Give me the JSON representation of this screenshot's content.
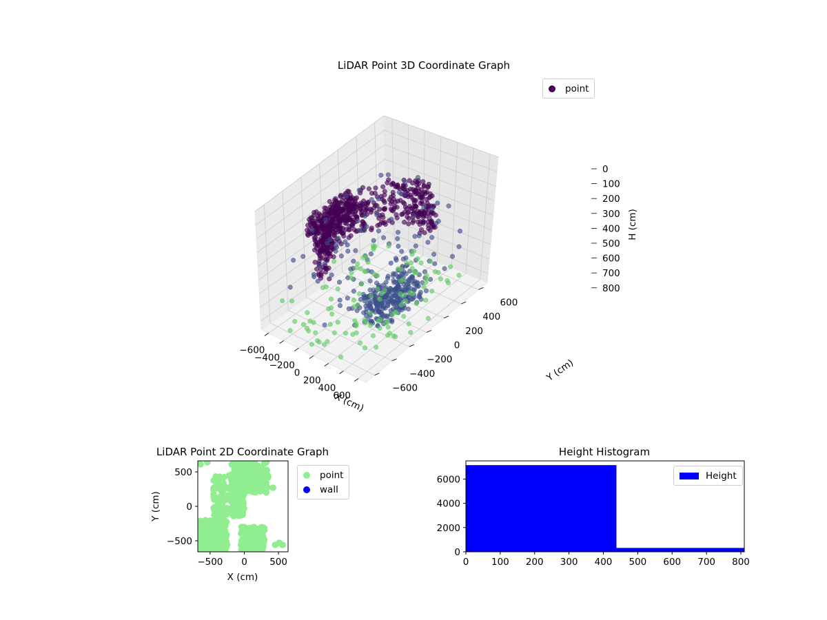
{
  "chart_data": [
    {
      "type": "scatter3d",
      "title": "LiDAR Point 3D Coordinate Graph",
      "xlabel": "X (cm)",
      "ylabel": "Y (cm)",
      "zlabel": "H (cm)",
      "xlim": [
        -700,
        700
      ],
      "ylim": [
        -700,
        700
      ],
      "zlim": [
        800,
        0
      ],
      "xticks": [
        "−600",
        "−400",
        "−200",
        "0",
        "200",
        "400",
        "600"
      ],
      "yticks": [
        "−600",
        "−400",
        "−200",
        "0",
        "200",
        "400",
        "600"
      ],
      "zticks": [
        "0",
        "100",
        "200",
        "300",
        "400",
        "500",
        "600",
        "700",
        "800"
      ],
      "grid": true,
      "legend": {
        "position": "upper-right",
        "entries": [
          {
            "name": "point",
            "color": "#440154"
          }
        ]
      },
      "colormap": "viridis",
      "series": [
        {
          "name": "point",
          "clusters": [
            {
              "shape": "arc",
              "h": [
                180,
                460
              ],
              "radius": [
                420,
                560
              ],
              "angle_deg": [
                20,
                215
              ],
              "color": "#440154"
            },
            {
              "shape": "blob",
              "x": [
                -200,
                300
              ],
              "y": [
                -450,
                -100
              ],
              "h": [
                560,
                720
              ],
              "color": "#3b528b"
            },
            {
              "shape": "blob",
              "x": [
                -150,
                350
              ],
              "y": [
                250,
                550
              ],
              "h": [
                180,
                300
              ],
              "color": "#440154"
            },
            {
              "shape": "scatter",
              "x": [
                -650,
                650
              ],
              "y": [
                -650,
                650
              ],
              "h": [
                250,
                650
              ],
              "color": "#3e4a89"
            },
            {
              "shape": "scatter",
              "x": [
                -600,
                650
              ],
              "y": [
                -650,
                650
              ],
              "h": [
                650,
                800
              ],
              "color": "#5ec962"
            }
          ]
        }
      ]
    },
    {
      "type": "scatter",
      "title": "LiDAR Point 2D Coordinate Graph",
      "xlabel": "X (cm)",
      "ylabel": "Y (cm)",
      "xlim": [
        -680,
        640
      ],
      "ylim": [
        -660,
        660
      ],
      "xticks": [
        "−500",
        "0",
        "500"
      ],
      "yticks": [
        "−500",
        "0",
        "500"
      ],
      "legend": {
        "position": "outside-right",
        "entries": [
          {
            "name": "point",
            "color": "#90ee90"
          },
          {
            "name": "wall",
            "color": "#0000ff"
          }
        ]
      },
      "series": [
        {
          "name": "point",
          "color": "#90ee90",
          "clusters": [
            {
              "x": [
                -680,
                -250
              ],
              "y": [
                -650,
                -200
              ]
            },
            {
              "x": [
                -450,
                0
              ],
              "y": [
                -150,
                450
              ]
            },
            {
              "x": [
                -200,
                350
              ],
              "y": [
                200,
                650
              ]
            },
            {
              "x": [
                -50,
                300
              ],
              "y": [
                -650,
                -300
              ]
            }
          ],
          "outliers": [
            [
              420,
              270
            ],
            [
              450,
              -560
            ],
            [
              510,
              -530
            ],
            [
              560,
              -560
            ],
            [
              -640,
              610
            ],
            [
              -540,
              640
            ]
          ]
        },
        {
          "name": "wall",
          "color": "#0000ff",
          "clusters": []
        }
      ]
    },
    {
      "type": "histogram",
      "title": "Height Histogram",
      "xlim": [
        0,
        810
      ],
      "ylim": [
        0,
        7500
      ],
      "xticks": [
        "0",
        "100",
        "200",
        "300",
        "400",
        "500",
        "600",
        "700",
        "800"
      ],
      "yticks": [
        "0",
        "2000",
        "4000",
        "6000"
      ],
      "legend": {
        "position": "upper-right",
        "entries": [
          {
            "name": "Height",
            "color": "#0000ff"
          }
        ]
      },
      "bins": [
        {
          "x0": 0,
          "x1": 438,
          "count": 7150
        },
        {
          "x0": 438,
          "x1": 810,
          "count": 320
        }
      ],
      "color": "#0000ff"
    }
  ]
}
